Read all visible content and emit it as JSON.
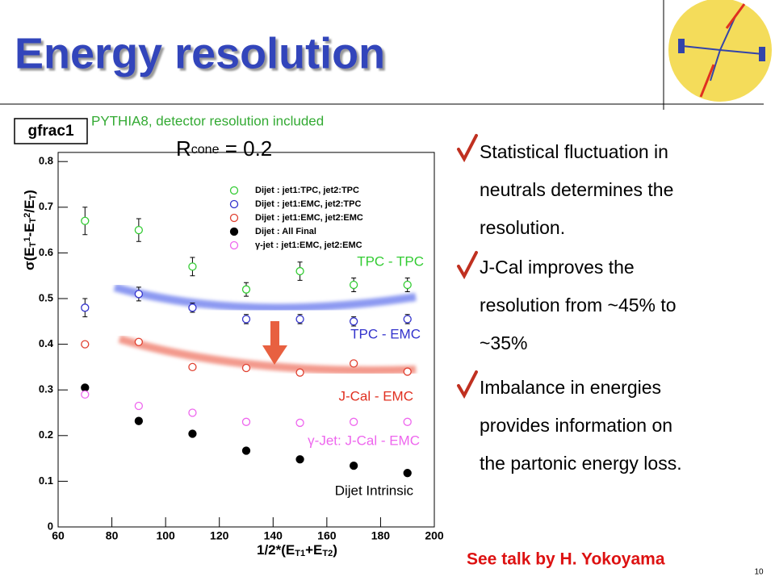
{
  "slide": {
    "title": "Energy resolution",
    "bullets": [
      [
        "Statistical fluctuation in",
        "neutrals determines the",
        "resolution."
      ],
      [
        "J-Cal improves the",
        "resolution from ~45% to",
        "~35%"
      ],
      [
        "Imbalance in energies",
        "provides information on",
        "the partonic  energy loss."
      ]
    ],
    "footer": "See talk by H. Yokoyama",
    "page_number": "10"
  },
  "chart_data": {
    "type": "scatter",
    "title": "gfrac1",
    "subtitle": "PYTHIA8, detector resolution included",
    "rcone": {
      "symbol": "R",
      "subscript": "cone",
      "text": " = 0.2"
    },
    "xlabel": [
      "1/2*(E",
      "T1",
      "+E",
      "T2",
      ")"
    ],
    "ylabel": [
      "σ(E",
      "T",
      "1",
      "-E",
      "T",
      "2",
      "/E",
      "T",
      ")"
    ],
    "x": [
      70,
      90,
      110,
      130,
      150,
      170,
      190
    ],
    "xlim": [
      60,
      200
    ],
    "xticks": [
      60,
      80,
      100,
      120,
      140,
      160,
      180,
      200
    ],
    "ylim": [
      0,
      0.82
    ],
    "yticks": [
      0,
      0.1,
      0.2,
      0.3,
      0.4,
      0.5,
      0.6,
      0.7,
      0.8
    ],
    "series": [
      {
        "name": "Dijet : jet1:TPC, jet2:TPC",
        "color": "#33cc33",
        "marker": "open",
        "values": [
          0.67,
          0.65,
          0.57,
          0.52,
          0.56,
          0.53,
          0.53
        ],
        "errors": [
          0.03,
          0.025,
          0.02,
          0.015,
          0.02,
          0.015,
          0.015
        ]
      },
      {
        "name": "Dijet : jet1:EMC, jet2:TPC",
        "color": "#3333cc",
        "marker": "open",
        "values": [
          0.48,
          0.51,
          0.48,
          0.455,
          0.455,
          0.45,
          0.455
        ],
        "errors": [
          0.02,
          0.015,
          0.01,
          0.01,
          0.01,
          0.01,
          0.01
        ]
      },
      {
        "name": "Dijet : jet1:EMC, jet2:EMC",
        "color": "#e04030",
        "marker": "open",
        "values": [
          0.4,
          0.405,
          0.35,
          0.348,
          0.338,
          0.358,
          0.34
        ]
      },
      {
        "name": "Dijet : All Final",
        "color": "#000000",
        "marker": "filled",
        "values": [
          0.305,
          0.232,
          0.204,
          0.167,
          0.148,
          0.134,
          0.118
        ]
      },
      {
        "name": "γ-jet : jet1:EMC, jet2:EMC",
        "color": "#ee66ee",
        "marker": "open",
        "values": [
          0.29,
          0.265,
          0.25,
          0.23,
          0.228,
          0.23,
          0.23
        ]
      }
    ],
    "annotations": [
      {
        "text": "TPC - TPC",
        "color": "#33cc33"
      },
      {
        "text": "TPC - EMC",
        "color": "#3333cc"
      },
      {
        "text": "J-Cal - EMC",
        "color": "#e03020"
      },
      {
        "text": "γ-Jet: J-Cal - EMC",
        "color": "#ee66ee"
      },
      {
        "text": "Dijet Intrinsic",
        "color": "#000000"
      }
    ]
  }
}
